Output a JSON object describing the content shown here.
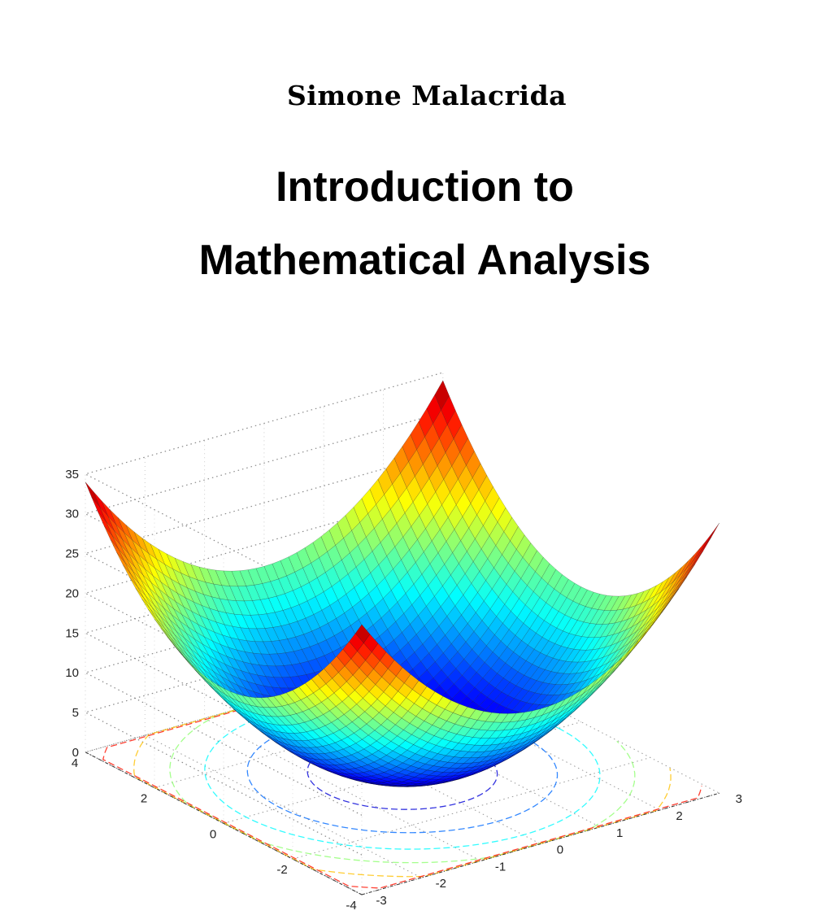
{
  "cover": {
    "author": "Simone Malacrida",
    "title_line1": "Introduction to",
    "title_line2": "Mathematical Analysis"
  },
  "chart_data": {
    "type": "surface",
    "subtype": "3d surface with floor contour plot (bowl / elliptic paraboloid)",
    "colormap": "jet",
    "grid": true,
    "x_ticks": [
      "-3",
      "-2",
      "-1",
      "0",
      "1",
      "2",
      "3"
    ],
    "y_ticks": [
      "-4",
      "-2",
      "0",
      "2",
      "4"
    ],
    "z_ticks": [
      "0",
      "5",
      "10",
      "15",
      "20",
      "25",
      "30",
      "35"
    ],
    "x_range": [
      -3,
      3
    ],
    "y_range": [
      -4,
      4
    ],
    "z_range": [
      0,
      35
    ]
  }
}
